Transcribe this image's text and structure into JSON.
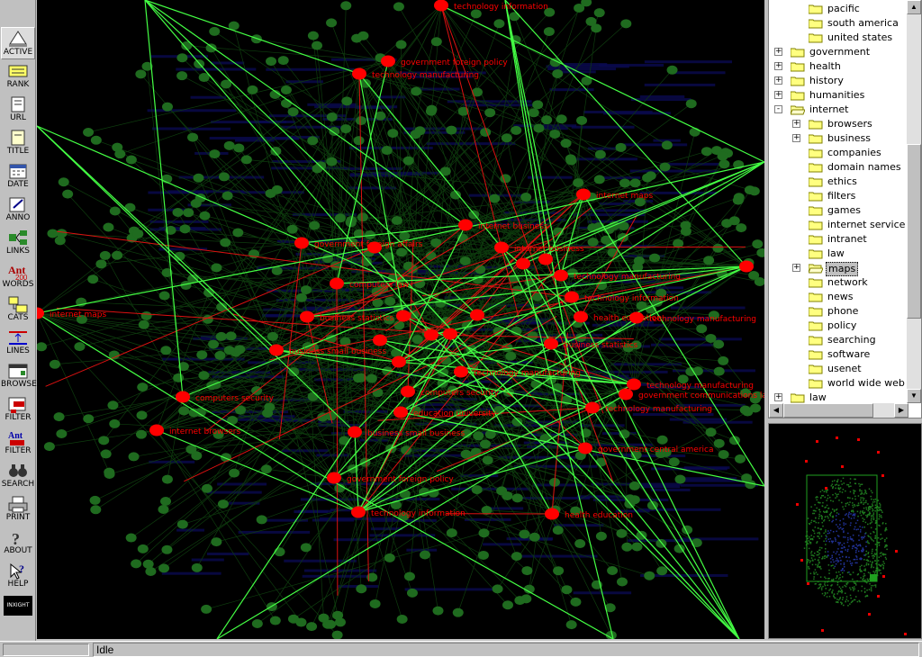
{
  "toolbar": {
    "items": [
      {
        "label": "ACTIVE",
        "icon": "active-icon"
      },
      {
        "label": "RANK",
        "icon": "rank-icon"
      },
      {
        "label": "URL",
        "icon": "url-icon"
      },
      {
        "label": "TITLE",
        "icon": "title-icon"
      },
      {
        "label": "DATE",
        "icon": "date-icon"
      },
      {
        "label": "ANNO",
        "icon": "anno-icon"
      },
      {
        "label": "LINKS",
        "icon": "links-icon"
      },
      {
        "label": "WORDS",
        "icon": "words-icon"
      },
      {
        "label": "CATS",
        "icon": "cats-icon"
      },
      {
        "label": "LINES",
        "icon": "lines-icon"
      },
      {
        "label": "BROWSER",
        "icon": "browser-icon"
      },
      {
        "label": "FILTER",
        "icon": "filter-icon"
      },
      {
        "label": "FILTER",
        "icon": "ant-filter-icon"
      },
      {
        "label": "SEARCH",
        "icon": "binoculars-icon"
      },
      {
        "label": "PRINT",
        "icon": "printer-icon"
      },
      {
        "label": "ABOUT",
        "icon": "question-icon"
      },
      {
        "label": "HELP",
        "icon": "help-pointer-icon"
      }
    ],
    "logo_text": "INXIGHT"
  },
  "graph": {
    "colors": {
      "hub": "#ff0000",
      "leaf": "#1f6b1f",
      "edge_hi": "#44ff44",
      "edge_red": "#dd1111",
      "edge_dim": "#0e3c0e",
      "blue": "#0a0a50"
    },
    "labels": [
      "technology information",
      "government foreign policy",
      "technology manufacturing",
      "internet maps",
      "internet business",
      "government foreign affairs",
      "internet business",
      "technology manufacturing",
      "computers law",
      "technology information",
      "business statistics",
      "health education",
      "technology manufacturing",
      "internet maps",
      "business small business",
      "business statistics",
      "technology manufacturing",
      "technology manufacturing",
      "government communications law",
      "computers security",
      "computers security",
      "education university",
      "technology manufacturing",
      "internet browsers",
      "business small business",
      "government central america",
      "government foreign policy",
      "technology information",
      "health education"
    ]
  },
  "tree": {
    "items": [
      {
        "label": "pacific",
        "level": 2,
        "expander": "",
        "selected": false
      },
      {
        "label": "south america",
        "level": 2,
        "expander": "",
        "selected": false
      },
      {
        "label": "united states",
        "level": 2,
        "expander": "",
        "selected": false
      },
      {
        "label": "government",
        "level": 1,
        "expander": "+",
        "selected": false
      },
      {
        "label": "health",
        "level": 1,
        "expander": "+",
        "selected": false
      },
      {
        "label": "history",
        "level": 1,
        "expander": "+",
        "selected": false
      },
      {
        "label": "humanities",
        "level": 1,
        "expander": "+",
        "selected": false
      },
      {
        "label": "internet",
        "level": 1,
        "expander": "-",
        "selected": false,
        "open": true
      },
      {
        "label": "browsers",
        "level": 2,
        "expander": "+",
        "selected": false
      },
      {
        "label": "business",
        "level": 2,
        "expander": "+",
        "selected": false
      },
      {
        "label": "companies",
        "level": 2,
        "expander": "",
        "selected": false
      },
      {
        "label": "domain names",
        "level": 2,
        "expander": "",
        "selected": false
      },
      {
        "label": "ethics",
        "level": 2,
        "expander": "",
        "selected": false
      },
      {
        "label": "filters",
        "level": 2,
        "expander": "",
        "selected": false
      },
      {
        "label": "games",
        "level": 2,
        "expander": "",
        "selected": false
      },
      {
        "label": "internet service",
        "level": 2,
        "expander": "",
        "selected": false
      },
      {
        "label": "intranet",
        "level": 2,
        "expander": "",
        "selected": false
      },
      {
        "label": "law",
        "level": 2,
        "expander": "",
        "selected": false
      },
      {
        "label": "maps",
        "level": 2,
        "expander": "+",
        "selected": true,
        "open": true
      },
      {
        "label": "network",
        "level": 2,
        "expander": "",
        "selected": false
      },
      {
        "label": "news",
        "level": 2,
        "expander": "",
        "selected": false
      },
      {
        "label": "phone",
        "level": 2,
        "expander": "",
        "selected": false
      },
      {
        "label": "policy",
        "level": 2,
        "expander": "",
        "selected": false
      },
      {
        "label": "searching",
        "level": 2,
        "expander": "",
        "selected": false
      },
      {
        "label": "software",
        "level": 2,
        "expander": "",
        "selected": false
      },
      {
        "label": "usenet",
        "level": 2,
        "expander": "",
        "selected": false
      },
      {
        "label": "world wide web",
        "level": 2,
        "expander": "",
        "selected": false
      },
      {
        "label": "law",
        "level": 1,
        "expander": "+",
        "selected": false
      }
    ]
  },
  "status": {
    "progress": 0,
    "text": "Idle"
  }
}
